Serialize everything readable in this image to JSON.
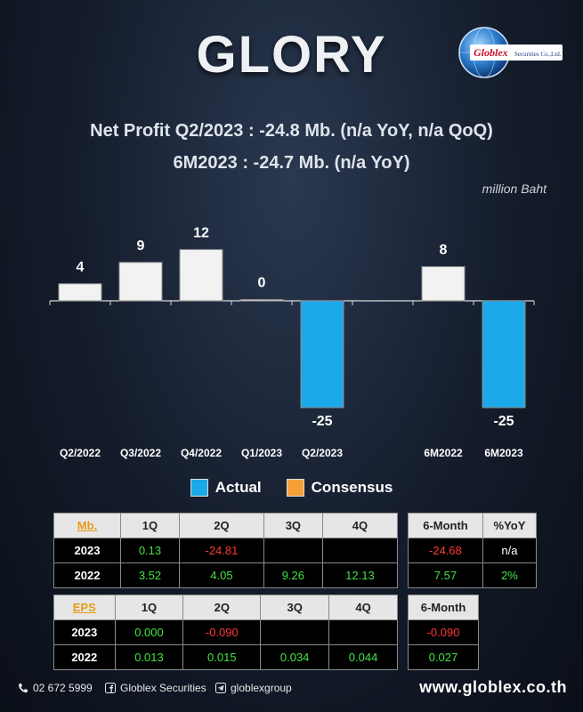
{
  "brand": {
    "title": "GLORY",
    "logo_text": "Globlex Securities Co.,Ltd."
  },
  "headline": {
    "line1": "Net Profit  Q2/2023 : -24.8 Mb. (n/a YoY, n/a QoQ)",
    "line2": "6M2023 : -24.7 Mb. (n/a YoY)"
  },
  "unit_note": "million Baht",
  "chart_data": {
    "type": "bar",
    "categories": [
      "Q2/2022",
      "Q3/2022",
      "Q4/2022",
      "Q1/2023",
      "Q2/2023",
      "",
      "6M2022",
      "6M2023"
    ],
    "values": [
      4,
      9,
      12,
      0,
      -25,
      null,
      8,
      -25
    ],
    "data_labels": [
      "4",
      "9",
      "12",
      "0",
      "-25",
      "",
      "8",
      "-25"
    ],
    "legend": [
      "Actual",
      "Consensus"
    ],
    "colors": {
      "actual": "#1ca9e9",
      "history": "#f2f2f2",
      "consensus": "#f5a03a"
    },
    "ylim": [
      -25,
      12
    ]
  },
  "mb_table": {
    "headers": [
      "Mb.",
      "1Q",
      "2Q",
      "3Q",
      "4Q"
    ],
    "rows": [
      {
        "label": "2023",
        "cells": [
          [
            "0.13",
            "pos"
          ],
          [
            "-24.81",
            "neg"
          ],
          [
            "",
            "neu"
          ],
          [
            "",
            "neu"
          ]
        ]
      },
      {
        "label": "2022",
        "cells": [
          [
            "3.52",
            "pos"
          ],
          [
            "4.05",
            "pos"
          ],
          [
            "9.26",
            "pos"
          ],
          [
            "12.13",
            "pos"
          ]
        ]
      }
    ]
  },
  "mb_side": {
    "headers": [
      "6-Month",
      "%YoY"
    ],
    "rows": [
      [
        [
          "-24.68",
          "neg"
        ],
        [
          "n/a",
          "neu"
        ]
      ],
      [
        [
          "7.57",
          "pos"
        ],
        [
          "2%",
          "pos"
        ]
      ]
    ]
  },
  "eps_table": {
    "headers": [
      "EPS",
      "1Q",
      "2Q",
      "3Q",
      "4Q"
    ],
    "rows": [
      {
        "label": "2023",
        "cells": [
          [
            "0.000",
            "pos"
          ],
          [
            "-0.090",
            "neg"
          ],
          [
            "",
            "neu"
          ],
          [
            "",
            "neu"
          ]
        ]
      },
      {
        "label": "2022",
        "cells": [
          [
            "0.013",
            "pos"
          ],
          [
            "0.015",
            "pos"
          ],
          [
            "0.034",
            "pos"
          ],
          [
            "0.044",
            "pos"
          ]
        ]
      }
    ]
  },
  "eps_side": {
    "headers": [
      "6-Month"
    ],
    "rows": [
      [
        [
          "-0.090",
          "neg"
        ]
      ],
      [
        [
          "0.027",
          "pos"
        ]
      ]
    ]
  },
  "footer": {
    "phone": "02 672 5999",
    "facebook": "Globlex Securities",
    "telegram": "globlexgroup",
    "website": "www.globlex.co.th"
  }
}
